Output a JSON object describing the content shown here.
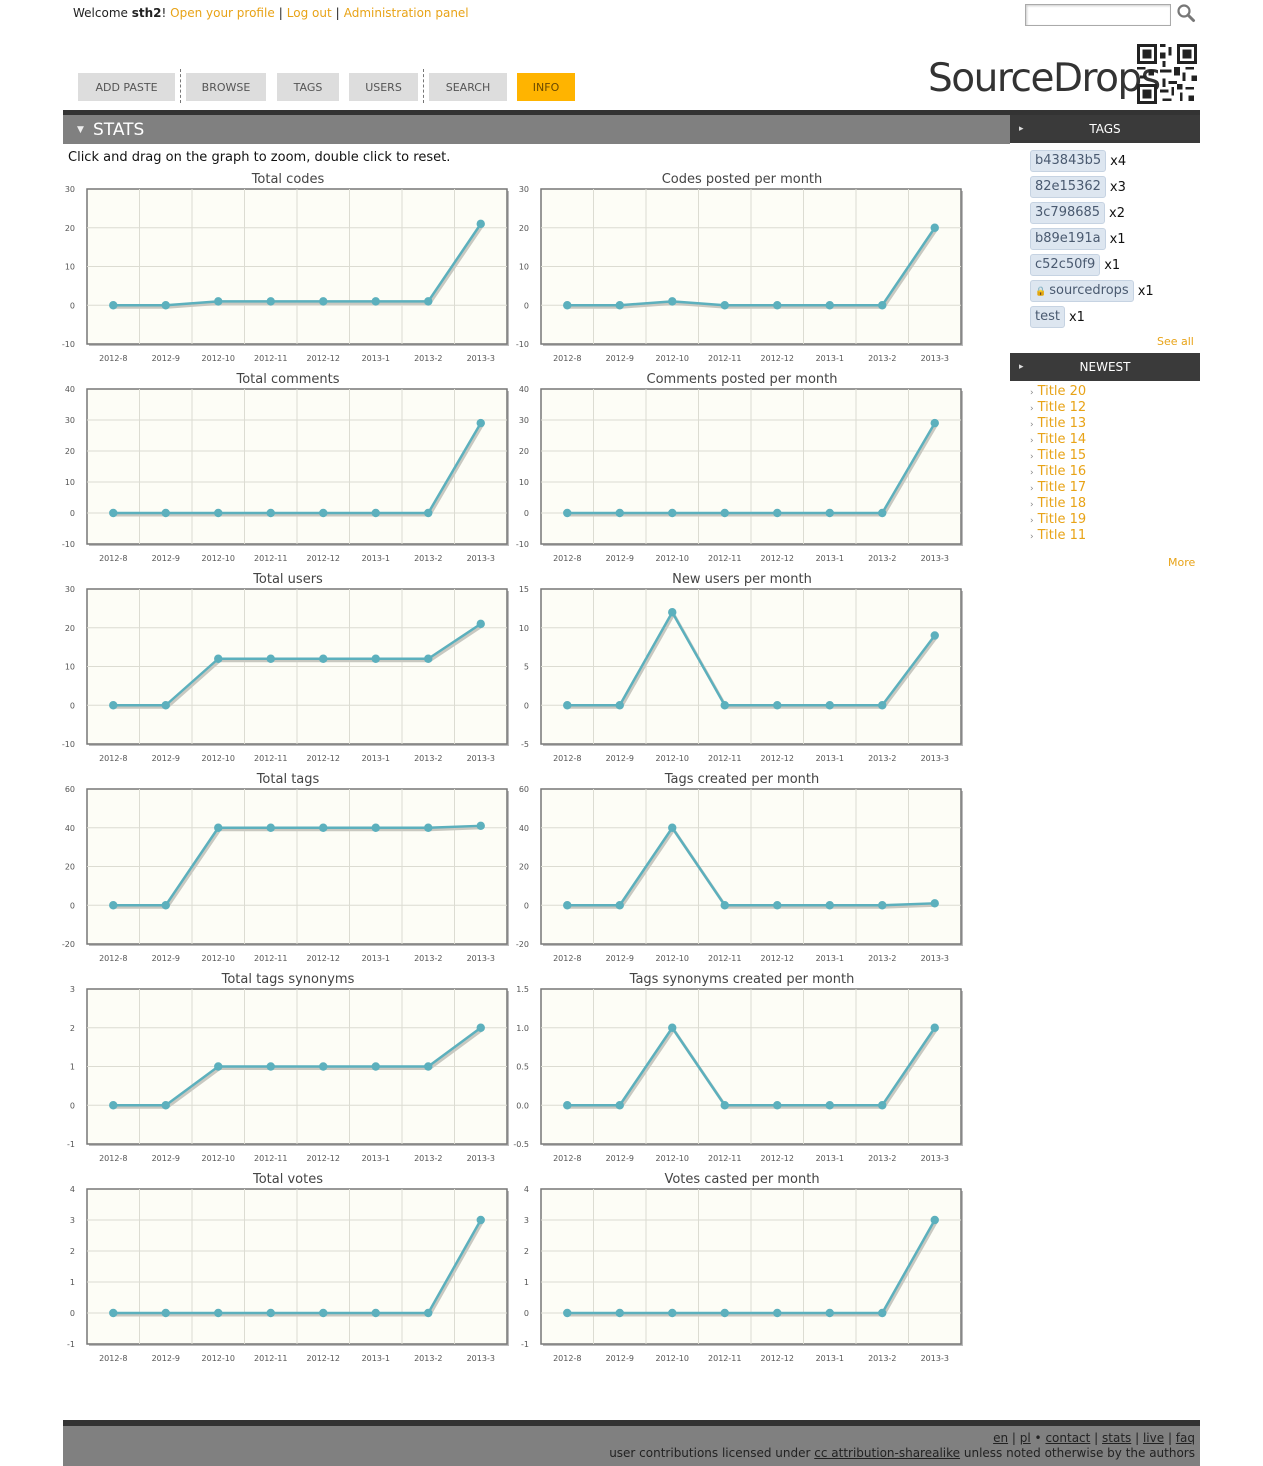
{
  "header": {
    "welcome_prefix": "Welcome",
    "username": "sth2",
    "welcome_suffix": "!",
    "links": [
      "Open your profile",
      "Log out",
      "Administration panel"
    ],
    "search_value": ""
  },
  "nav": {
    "tabs": [
      {
        "label": "ADD PASTE"
      },
      {
        "label": "BROWSE"
      },
      {
        "label": "TAGS"
      },
      {
        "label": "USERS"
      },
      {
        "label": "SEARCH"
      },
      {
        "label": "INFO"
      }
    ],
    "active": "INFO"
  },
  "logo": {
    "text": "SourceDrops"
  },
  "stats": {
    "title": "STATS",
    "intro": "Click and drag on the graph to zoom, double click to reset."
  },
  "colors": {
    "accent": "#ffb400",
    "link": "#e8a317",
    "series": "#5cb0bd",
    "plot_bg": "#fdfdf6"
  },
  "chart_data": [
    {
      "type": "line",
      "title": "Total codes",
      "categories": [
        "2012-8",
        "2012-9",
        "2012-10",
        "2012-11",
        "2012-12",
        "2013-1",
        "2013-2",
        "2013-3"
      ],
      "values": [
        0,
        0,
        1,
        1,
        1,
        1,
        1,
        21
      ],
      "yticks": [
        "-10",
        "0",
        "10",
        "20",
        "30"
      ],
      "ylim": [
        -10,
        30
      ],
      "grid": true
    },
    {
      "type": "line",
      "title": "Codes posted per month",
      "categories": [
        "2012-8",
        "2012-9",
        "2012-10",
        "2012-11",
        "2012-12",
        "2013-1",
        "2013-2",
        "2013-3"
      ],
      "values": [
        0,
        0,
        1,
        0,
        0,
        0,
        0,
        20
      ],
      "yticks": [
        "-10",
        "0",
        "10",
        "20",
        "30"
      ],
      "ylim": [
        -10,
        30
      ],
      "grid": true
    },
    {
      "type": "line",
      "title": "Total comments",
      "categories": [
        "2012-8",
        "2012-9",
        "2012-10",
        "2012-11",
        "2012-12",
        "2013-1",
        "2013-2",
        "2013-3"
      ],
      "values": [
        0,
        0,
        0,
        0,
        0,
        0,
        0,
        29
      ],
      "yticks": [
        "-10",
        "0",
        "10",
        "20",
        "30",
        "40"
      ],
      "ylim": [
        -10,
        40
      ],
      "grid": true
    },
    {
      "type": "line",
      "title": "Comments posted per month",
      "categories": [
        "2012-8",
        "2012-9",
        "2012-10",
        "2012-11",
        "2012-12",
        "2013-1",
        "2013-2",
        "2013-3"
      ],
      "values": [
        0,
        0,
        0,
        0,
        0,
        0,
        0,
        29
      ],
      "yticks": [
        "-10",
        "0",
        "10",
        "20",
        "30",
        "40"
      ],
      "ylim": [
        -10,
        40
      ],
      "grid": true
    },
    {
      "type": "line",
      "title": "Total users",
      "categories": [
        "2012-8",
        "2012-9",
        "2012-10",
        "2012-11",
        "2012-12",
        "2013-1",
        "2013-2",
        "2013-3"
      ],
      "values": [
        0,
        0,
        12,
        12,
        12,
        12,
        12,
        21
      ],
      "yticks": [
        "-10",
        "0",
        "10",
        "20",
        "30"
      ],
      "ylim": [
        -10,
        30
      ],
      "grid": true
    },
    {
      "type": "line",
      "title": "New users per month",
      "categories": [
        "2012-8",
        "2012-9",
        "2012-10",
        "2012-11",
        "2012-12",
        "2013-1",
        "2013-2",
        "2013-3"
      ],
      "values": [
        0,
        0,
        12,
        0,
        0,
        0,
        0,
        9
      ],
      "yticks": [
        "-5",
        "0",
        "5",
        "10",
        "15"
      ],
      "ylim": [
        -5,
        15
      ],
      "grid": true
    },
    {
      "type": "line",
      "title": "Total tags",
      "categories": [
        "2012-8",
        "2012-9",
        "2012-10",
        "2012-11",
        "2012-12",
        "2013-1",
        "2013-2",
        "2013-3"
      ],
      "values": [
        0,
        0,
        40,
        40,
        40,
        40,
        40,
        41
      ],
      "yticks": [
        "-20",
        "0",
        "20",
        "40",
        "60"
      ],
      "ylim": [
        -20,
        60
      ],
      "grid": true
    },
    {
      "type": "line",
      "title": "Tags created per month",
      "categories": [
        "2012-8",
        "2012-9",
        "2012-10",
        "2012-11",
        "2012-12",
        "2013-1",
        "2013-2",
        "2013-3"
      ],
      "values": [
        0,
        0,
        40,
        0,
        0,
        0,
        0,
        1
      ],
      "yticks": [
        "-20",
        "0",
        "20",
        "40",
        "60"
      ],
      "ylim": [
        -20,
        60
      ],
      "grid": true
    },
    {
      "type": "line",
      "title": "Total tags synonyms",
      "categories": [
        "2012-8",
        "2012-9",
        "2012-10",
        "2012-11",
        "2012-12",
        "2013-1",
        "2013-2",
        "2013-3"
      ],
      "values": [
        0,
        0,
        1,
        1,
        1,
        1,
        1,
        2
      ],
      "yticks": [
        "-1",
        "0",
        "1",
        "2",
        "3"
      ],
      "ylim": [
        -1,
        3
      ],
      "grid": true
    },
    {
      "type": "line",
      "title": "Tags synonyms created per month",
      "categories": [
        "2012-8",
        "2012-9",
        "2012-10",
        "2012-11",
        "2012-12",
        "2013-1",
        "2013-2",
        "2013-3"
      ],
      "values": [
        0,
        0,
        1,
        0,
        0,
        0,
        0,
        1
      ],
      "yticks": [
        "-0.5",
        "0.0",
        "0.5",
        "1.0",
        "1.5"
      ],
      "ylim": [
        -0.5,
        1.5
      ],
      "grid": true
    },
    {
      "type": "line",
      "title": "Total votes",
      "categories": [
        "2012-8",
        "2012-9",
        "2012-10",
        "2012-11",
        "2012-12",
        "2013-1",
        "2013-2",
        "2013-3"
      ],
      "values": [
        0,
        0,
        0,
        0,
        0,
        0,
        0,
        3
      ],
      "yticks": [
        "-1",
        "0",
        "1",
        "2",
        "3",
        "4"
      ],
      "ylim": [
        -1,
        4
      ],
      "grid": true
    },
    {
      "type": "line",
      "title": "Votes casted per month",
      "categories": [
        "2012-8",
        "2012-9",
        "2012-10",
        "2012-11",
        "2012-12",
        "2013-1",
        "2013-2",
        "2013-3"
      ],
      "values": [
        0,
        0,
        0,
        0,
        0,
        0,
        0,
        3
      ],
      "yticks": [
        "-1",
        "0",
        "1",
        "2",
        "3",
        "4"
      ],
      "ylim": [
        -1,
        4
      ],
      "grid": true
    }
  ],
  "sidebar": {
    "tags_title": "TAGS",
    "tags": [
      {
        "name": "b43843b5",
        "count": "x4",
        "locked": false
      },
      {
        "name": "82e15362",
        "count": "x3",
        "locked": false
      },
      {
        "name": "3c798685",
        "count": "x2",
        "locked": false
      },
      {
        "name": "b89e191a",
        "count": "x1",
        "locked": false
      },
      {
        "name": "c52c50f9",
        "count": "x1",
        "locked": false
      },
      {
        "name": "sourcedrops",
        "count": "x1",
        "locked": true
      },
      {
        "name": "test",
        "count": "x1",
        "locked": false
      }
    ],
    "see_all": "See all",
    "newest_title": "NEWEST",
    "newest": [
      "Title 20",
      "Title 12",
      "Title 13",
      "Title 14",
      "Title 15",
      "Title 16",
      "Title 17",
      "Title 18",
      "Title 19",
      "Title 11"
    ],
    "more": "More"
  },
  "footer": {
    "lang_en": "en",
    "lang_pl": "pl",
    "bullet": "•",
    "links": [
      "contact",
      "stats",
      "live",
      "faq"
    ],
    "license_prefix": "user contributions licensed under",
    "license_link": "cc attribution-sharealike",
    "license_suffix": "unless noted otherwise by the authors"
  }
}
